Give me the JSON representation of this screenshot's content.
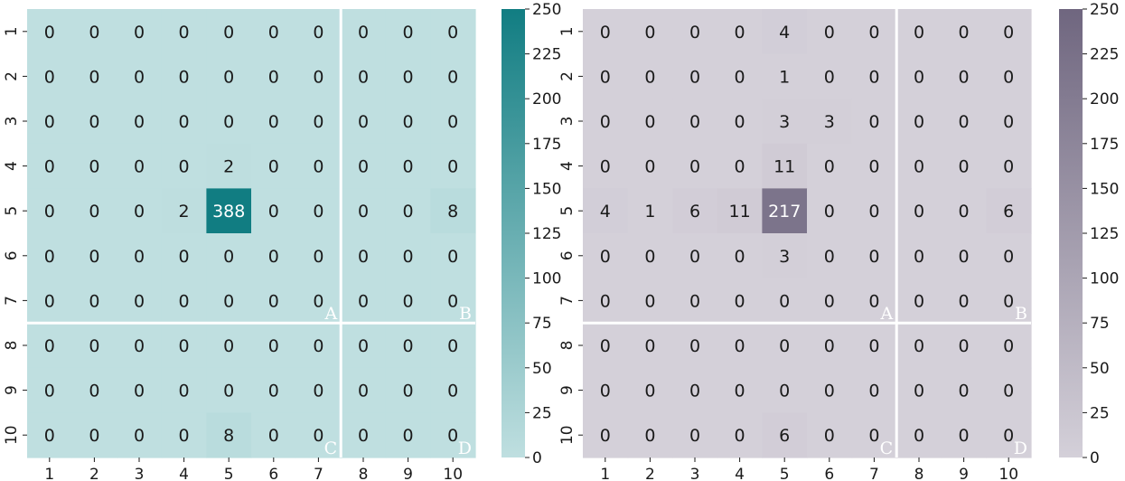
{
  "chart_data": [
    {
      "type": "heatmap",
      "x_categories": [
        "1",
        "2",
        "3",
        "4",
        "5",
        "6",
        "7",
        "8",
        "9",
        "10"
      ],
      "y_categories": [
        "1",
        "2",
        "3",
        "4",
        "5",
        "6",
        "7",
        "8",
        "9",
        "10"
      ],
      "values": [
        [
          0,
          0,
          0,
          0,
          0,
          0,
          0,
          0,
          0,
          0
        ],
        [
          0,
          0,
          0,
          0,
          0,
          0,
          0,
          0,
          0,
          0
        ],
        [
          0,
          0,
          0,
          0,
          0,
          0,
          0,
          0,
          0,
          0
        ],
        [
          0,
          0,
          0,
          0,
          2,
          0,
          0,
          0,
          0,
          0
        ],
        [
          0,
          0,
          0,
          2,
          388,
          0,
          0,
          0,
          0,
          8
        ],
        [
          0,
          0,
          0,
          0,
          0,
          0,
          0,
          0,
          0,
          0
        ],
        [
          0,
          0,
          0,
          0,
          0,
          0,
          0,
          0,
          0,
          0
        ],
        [
          0,
          0,
          0,
          0,
          0,
          0,
          0,
          0,
          0,
          0
        ],
        [
          0,
          0,
          0,
          0,
          0,
          0,
          0,
          0,
          0,
          0
        ],
        [
          0,
          0,
          0,
          0,
          8,
          0,
          0,
          0,
          0,
          0
        ]
      ],
      "quadrant_labels": [
        "A",
        "B",
        "C",
        "D"
      ],
      "colorbar": {
        "range": [
          0,
          250
        ],
        "ticks": [
          "0",
          "25",
          "50",
          "75",
          "100",
          "125",
          "150",
          "175",
          "200",
          "225",
          "250"
        ],
        "low_color": "#bfdfe0",
        "high_color": "#117d82"
      }
    },
    {
      "type": "heatmap",
      "x_categories": [
        "1",
        "2",
        "3",
        "4",
        "5",
        "6",
        "7",
        "8",
        "9",
        "10"
      ],
      "y_categories": [
        "1",
        "2",
        "3",
        "4",
        "5",
        "6",
        "7",
        "8",
        "9",
        "10"
      ],
      "values": [
        [
          0,
          0,
          0,
          0,
          4,
          0,
          0,
          0,
          0,
          0
        ],
        [
          0,
          0,
          0,
          0,
          1,
          0,
          0,
          0,
          0,
          0
        ],
        [
          0,
          0,
          0,
          0,
          3,
          3,
          0,
          0,
          0,
          0
        ],
        [
          0,
          0,
          0,
          0,
          11,
          0,
          0,
          0,
          0,
          0
        ],
        [
          4,
          1,
          6,
          11,
          217,
          0,
          0,
          0,
          0,
          6
        ],
        [
          0,
          0,
          0,
          0,
          3,
          0,
          0,
          0,
          0,
          0
        ],
        [
          0,
          0,
          0,
          0,
          0,
          0,
          0,
          0,
          0,
          0
        ],
        [
          0,
          0,
          0,
          0,
          0,
          0,
          0,
          0,
          0,
          0
        ],
        [
          0,
          0,
          0,
          0,
          0,
          0,
          0,
          0,
          0,
          0
        ],
        [
          0,
          0,
          0,
          0,
          6,
          0,
          0,
          0,
          0,
          0
        ]
      ],
      "quadrant_labels": [
        "A",
        "B",
        "C",
        "D"
      ],
      "colorbar": {
        "range": [
          0,
          250
        ],
        "ticks": [
          "0",
          "25",
          "50",
          "75",
          "100",
          "125",
          "150",
          "175",
          "200",
          "225",
          "250"
        ],
        "low_color": "#d4d0d9",
        "high_color": "#6f667f"
      }
    }
  ],
  "colors": {
    "text_dark": "#1a1a1a",
    "text_light": "#ffffff",
    "divider": "#ffffff",
    "quadrant_label": "#ffffff"
  }
}
